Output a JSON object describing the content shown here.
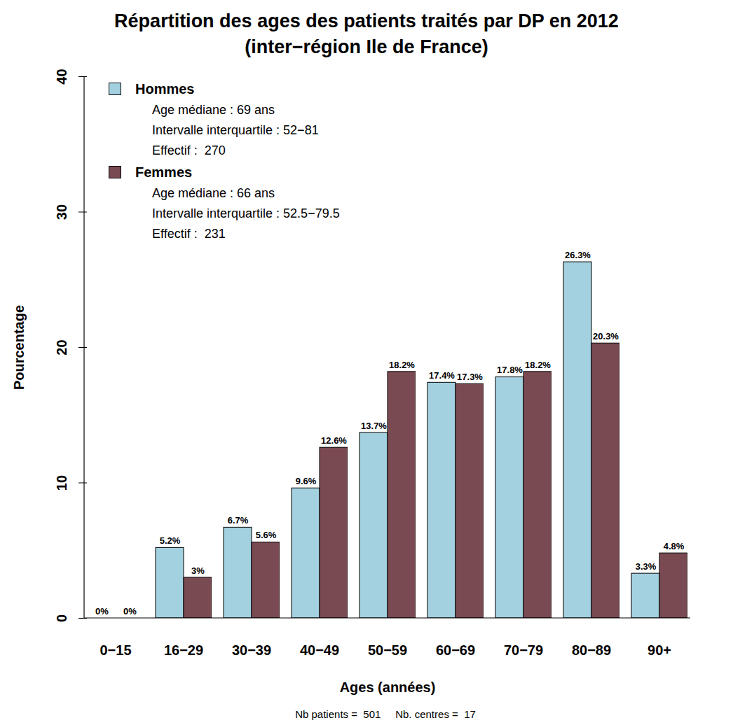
{
  "chart_data": {
    "type": "bar",
    "title": "Répartition des ages des patients traités par DP en 2012",
    "subtitle": "(inter−région Ile de France)",
    "caption": "Nb patients =  501     Nb. centres =  17",
    "xlabel": "Ages (années)",
    "ylabel": "Pourcentage",
    "categories": [
      "0−15",
      "16−29",
      "30−39",
      "40−49",
      "50−59",
      "60−69",
      "70−79",
      "80−89",
      "90+"
    ],
    "series": [
      {
        "name": "Hommes",
        "color": "#a3d1e0",
        "values": [
          0,
          5.2,
          6.7,
          9.6,
          13.7,
          17.4,
          17.8,
          26.3,
          3.3
        ],
        "value_labels": [
          "0%",
          "5.2%",
          "6.7%",
          "9.6%",
          "13.7%",
          "17.4%",
          "17.8%",
          "26.3%",
          "3.3%"
        ],
        "details": [
          "Age médiane : 69 ans",
          "Intervalle interquartile : 52−81",
          "Effectif :  270"
        ]
      },
      {
        "name": "Femmes",
        "color": "#7a4a52",
        "values": [
          0,
          3,
          5.6,
          12.6,
          18.2,
          17.3,
          18.2,
          20.3,
          4.8
        ],
        "value_labels": [
          "0%",
          "3%",
          "5.6%",
          "12.6%",
          "18.2%",
          "17.3%",
          "18.2%",
          "20.3%",
          "4.8%"
        ],
        "details": [
          "Age médiane : 66 ans",
          "Intervalle interquartile : 52.5−79.5",
          "Effectif :  231"
        ]
      }
    ],
    "ylim": [
      0,
      40
    ],
    "yticks": [
      0,
      10,
      20,
      30,
      40
    ],
    "grid": false,
    "legend": "top-left",
    "data_labels": true
  }
}
